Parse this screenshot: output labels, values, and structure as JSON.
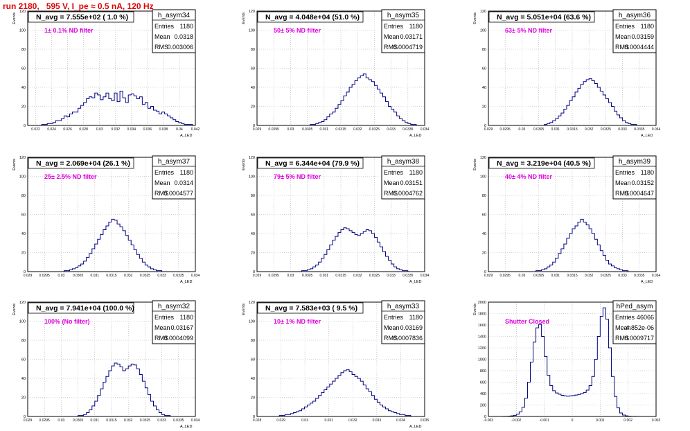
{
  "title": "run 2180,   595 V, I_pe ≈ 0.5 nA, 120 Hz",
  "colors": {
    "title": "#e00000",
    "annotation": "#e000e0",
    "histogram": "#000080",
    "grid": "#b0b0b0"
  },
  "chart_data": [
    {
      "type": "histogram",
      "name": "h_asym34",
      "headline": "N_avg = 7.555e+02 ( 1.0 %)",
      "annotation": "1± 0.1% ND filter",
      "stats": [
        [
          "Entries",
          "1180"
        ],
        [
          "Mean",
          "0.0318"
        ],
        [
          "RMS",
          "0.003006"
        ]
      ],
      "ylabel": "Events",
      "xlabel": "A_LED",
      "xlim": [
        0.021,
        0.042
      ],
      "ylim": [
        0,
        120
      ],
      "xticks": [
        0.022,
        0.024,
        0.026,
        0.028,
        0.03,
        0.032,
        0.034,
        0.036,
        0.038,
        0.04,
        0.042
      ],
      "xtick_labels": [
        "0.022",
        "0.024",
        "0.026",
        "0.028",
        "0.03",
        "0.032",
        "0.034",
        "0.036",
        "0.038",
        "0.04",
        "0.042"
      ],
      "yticks": [
        0,
        20,
        40,
        60,
        80,
        100,
        120
      ],
      "counts": [
        0,
        0,
        0,
        0,
        0,
        1,
        1,
        2,
        2,
        3,
        5,
        5,
        7,
        10,
        9,
        12,
        14,
        14,
        18,
        21,
        24,
        28,
        30,
        29,
        34,
        32,
        27,
        30,
        34,
        28,
        26,
        34,
        25,
        36,
        29,
        24,
        32,
        33,
        31,
        28,
        30,
        22,
        24,
        18,
        20,
        16,
        15,
        12,
        14,
        12,
        10,
        8,
        6,
        4,
        3,
        2,
        1,
        1,
        1,
        0
      ]
    },
    {
      "type": "histogram",
      "name": "h_asym35",
      "headline": "N_avg = 4.048e+04 (51.0 %)",
      "annotation": "50± 5% ND filter",
      "stats": [
        [
          "Entries",
          "1180"
        ],
        [
          "Mean",
          "0.03171"
        ],
        [
          "RMS",
          "0.0004719"
        ]
      ],
      "ylabel": "Events",
      "xlabel": "A_LED",
      "xlim": [
        0.029,
        0.034
      ],
      "ylim": [
        0,
        120
      ],
      "xticks": [
        0.029,
        0.0295,
        0.03,
        0.0305,
        0.031,
        0.0315,
        0.032,
        0.0325,
        0.033,
        0.0335,
        0.034
      ],
      "xtick_labels": [
        "0.029",
        "0.0295",
        "0.03",
        "0.0305",
        "0.031",
        "0.0315",
        "0.032",
        "0.0325",
        "0.033",
        "0.0335",
        "0.034"
      ],
      "yticks": [
        0,
        20,
        40,
        60,
        80,
        100,
        120
      ],
      "counts": [
        0,
        0,
        0,
        0,
        0,
        0,
        0,
        0,
        0,
        0,
        0,
        0,
        0,
        0,
        0,
        0,
        0,
        0,
        0,
        1,
        1,
        2,
        3,
        4,
        6,
        9,
        12,
        14,
        18,
        22,
        26,
        31,
        35,
        40,
        43,
        47,
        50,
        52,
        54,
        50,
        48,
        46,
        42,
        38,
        34,
        30,
        25,
        20,
        17,
        14,
        10,
        7,
        5,
        3,
        2,
        1,
        1,
        0,
        0,
        0
      ]
    },
    {
      "type": "histogram",
      "name": "h_asym36",
      "headline": "N_avg = 5.051e+04 (63.6 %)",
      "annotation": "63± 5% ND filter",
      "stats": [
        [
          "Entries",
          "1180"
        ],
        [
          "Mean",
          "0.03159"
        ],
        [
          "RMS",
          "0.0004444"
        ]
      ],
      "ylabel": "Events",
      "xlabel": "A_LED",
      "xlim": [
        0.029,
        0.034
      ],
      "ylim": [
        0,
        120
      ],
      "xticks": [
        0.029,
        0.0295,
        0.03,
        0.0305,
        0.031,
        0.0315,
        0.032,
        0.0325,
        0.033,
        0.0335,
        0.034
      ],
      "xtick_labels": [
        "0.029",
        "0.0295",
        "0.03",
        "0.0305",
        "0.031",
        "0.0315",
        "0.032",
        "0.0325",
        "0.033",
        "0.0335",
        "0.034"
      ],
      "yticks": [
        0,
        20,
        40,
        60,
        80,
        100,
        120
      ],
      "counts": [
        0,
        0,
        0,
        0,
        0,
        0,
        0,
        0,
        0,
        0,
        0,
        0,
        0,
        0,
        0,
        0,
        0,
        0,
        0,
        0,
        1,
        2,
        3,
        5,
        7,
        10,
        13,
        17,
        21,
        26,
        30,
        35,
        39,
        43,
        46,
        48,
        49,
        47,
        44,
        40,
        36,
        32,
        28,
        24,
        20,
        15,
        11,
        8,
        5,
        3,
        2,
        1,
        1,
        0,
        0,
        0,
        0,
        0,
        0,
        0
      ]
    },
    {
      "type": "histogram",
      "name": "h_asym37",
      "headline": "N_avg = 2.069e+04 (26.1 %)",
      "annotation": "25± 2.5% ND filter",
      "stats": [
        [
          "Entries",
          "1180"
        ],
        [
          "Mean",
          "0.0314"
        ],
        [
          "RMS",
          "0.0004577"
        ]
      ],
      "ylabel": "Events",
      "xlabel": "A_LED",
      "xlim": [
        0.029,
        0.034
      ],
      "ylim": [
        0,
        120
      ],
      "xticks": [
        0.029,
        0.0295,
        0.03,
        0.0305,
        0.031,
        0.0315,
        0.032,
        0.0325,
        0.033,
        0.0335,
        0.034
      ],
      "xtick_labels": [
        "0.029",
        "0.0295",
        "0.03",
        "0.0305",
        "0.031",
        "0.0315",
        "0.032",
        "0.0325",
        "0.033",
        "0.0335",
        "0.034"
      ],
      "yticks": [
        0,
        20,
        40,
        60,
        80,
        100,
        120
      ],
      "counts": [
        0,
        0,
        0,
        0,
        0,
        0,
        0,
        0,
        0,
        0,
        0,
        0,
        0,
        1,
        1,
        2,
        3,
        4,
        6,
        8,
        11,
        15,
        19,
        24,
        29,
        34,
        39,
        44,
        48,
        52,
        55,
        54,
        50,
        47,
        43,
        38,
        33,
        28,
        23,
        18,
        14,
        10,
        7,
        5,
        3,
        2,
        1,
        1,
        0,
        0,
        0,
        0,
        0,
        0,
        0,
        0,
        0,
        0,
        0,
        0
      ]
    },
    {
      "type": "histogram",
      "name": "h_asym38",
      "headline": "N_avg = 6.344e+04 (79.9 %)",
      "annotation": "79± 5% ND filter",
      "stats": [
        [
          "Entries",
          "1180"
        ],
        [
          "Mean",
          "0.03151"
        ],
        [
          "RMS",
          "0.0004762"
        ]
      ],
      "ylabel": "Events",
      "xlabel": "A_LED",
      "xlim": [
        0.029,
        0.034
      ],
      "ylim": [
        0,
        120
      ],
      "xticks": [
        0.029,
        0.0295,
        0.03,
        0.0305,
        0.031,
        0.0315,
        0.032,
        0.0325,
        0.033,
        0.0335,
        0.034
      ],
      "xtick_labels": [
        "0.029",
        "0.0295",
        "0.03",
        "0.0305",
        "0.031",
        "0.0315",
        "0.032",
        "0.0325",
        "0.033",
        "0.0335",
        "0.034"
      ],
      "yticks": [
        0,
        20,
        40,
        60,
        80,
        100,
        120
      ],
      "counts": [
        0,
        0,
        0,
        0,
        0,
        0,
        0,
        0,
        0,
        0,
        0,
        0,
        0,
        0,
        0,
        0,
        1,
        1,
        2,
        3,
        5,
        7,
        10,
        14,
        18,
        23,
        28,
        33,
        37,
        41,
        44,
        46,
        45,
        43,
        41,
        39,
        38,
        40,
        42,
        44,
        43,
        40,
        36,
        31,
        26,
        21,
        16,
        12,
        8,
        5,
        3,
        2,
        1,
        1,
        0,
        0,
        0,
        0,
        0,
        0
      ]
    },
    {
      "type": "histogram",
      "name": "h_asym39",
      "headline": "N_avg = 3.219e+04 (40.5 %)",
      "annotation": "40± 4% ND filter",
      "stats": [
        [
          "Entries",
          "1180"
        ],
        [
          "Mean",
          "0.03152"
        ],
        [
          "RMS",
          "0.0004647"
        ]
      ],
      "ylabel": "Events",
      "xlabel": "A_LED",
      "xlim": [
        0.029,
        0.034
      ],
      "ylim": [
        0,
        120
      ],
      "xticks": [
        0.029,
        0.0295,
        0.03,
        0.0305,
        0.031,
        0.0315,
        0.032,
        0.0325,
        0.033,
        0.0335,
        0.034
      ],
      "xtick_labels": [
        "0.029",
        "0.0295",
        "0.03",
        "0.0305",
        "0.031",
        "0.0315",
        "0.032",
        "0.0325",
        "0.033",
        "0.0335",
        "0.034"
      ],
      "yticks": [
        0,
        20,
        40,
        60,
        80,
        100,
        120
      ],
      "counts": [
        0,
        0,
        0,
        0,
        0,
        0,
        0,
        0,
        0,
        0,
        0,
        0,
        0,
        0,
        0,
        0,
        0,
        1,
        1,
        2,
        3,
        5,
        7,
        10,
        14,
        19,
        24,
        29,
        35,
        40,
        45,
        48,
        52,
        55,
        52,
        49,
        45,
        40,
        34,
        28,
        22,
        17,
        12,
        8,
        6,
        4,
        3,
        2,
        1,
        1,
        0,
        0,
        0,
        0,
        0,
        0,
        0,
        0,
        0,
        0
      ]
    },
    {
      "type": "histogram",
      "name": "h_asym32",
      "headline": "N_avg = 7.941e+04 (100.0 %)",
      "annotation": "100% (No filter)",
      "stats": [
        [
          "Entries",
          "1180"
        ],
        [
          "Mean",
          "0.03167"
        ],
        [
          "RMS",
          "0.0004099"
        ]
      ],
      "ylabel": "Events",
      "xlabel": "A_LED",
      "xlim": [
        0.029,
        0.034
      ],
      "ylim": [
        0,
        120
      ],
      "xticks": [
        0.029,
        0.0295,
        0.03,
        0.0305,
        0.031,
        0.0315,
        0.032,
        0.0325,
        0.033,
        0.0335,
        0.034
      ],
      "xtick_labels": [
        "0.029",
        "0.0295",
        "0.03",
        "0.0305",
        "0.031",
        "0.0315",
        "0.032",
        "0.0325",
        "0.033",
        "0.0335",
        "0.034"
      ],
      "yticks": [
        0,
        20,
        40,
        60,
        80,
        100,
        120
      ],
      "counts": [
        0,
        0,
        0,
        0,
        0,
        0,
        0,
        0,
        0,
        0,
        0,
        0,
        0,
        0,
        0,
        0,
        0,
        0,
        1,
        1,
        2,
        4,
        7,
        11,
        16,
        22,
        29,
        36,
        42,
        48,
        53,
        56,
        55,
        52,
        48,
        50,
        53,
        55,
        54,
        50,
        44,
        37,
        30,
        23,
        16,
        11,
        7,
        4,
        2,
        1,
        1,
        0,
        0,
        0,
        0,
        0,
        0,
        0,
        0,
        0
      ]
    },
    {
      "type": "histogram",
      "name": "h_asym33",
      "headline": "N_avg = 7.583e+03 ( 9.5 %)",
      "annotation": "10± 1% ND filter",
      "stats": [
        [
          "Entries",
          "1180"
        ],
        [
          "Mean",
          "0.03169"
        ],
        [
          "RMS",
          "0.0007836"
        ]
      ],
      "ylabel": "Events",
      "xlabel": "A_LED",
      "xlim": [
        0.028,
        0.035
      ],
      "ylim": [
        0,
        120
      ],
      "xticks": [
        0.028,
        0.029,
        0.03,
        0.031,
        0.032,
        0.033,
        0.034,
        0.035
      ],
      "xtick_labels": [
        "0.028",
        "0.029",
        "0.03",
        "0.031",
        "0.032",
        "0.033",
        "0.034",
        "0.035"
      ],
      "yticks": [
        0,
        20,
        40,
        60,
        80,
        100,
        120
      ],
      "counts": [
        0,
        0,
        0,
        0,
        0,
        0,
        0,
        0,
        1,
        1,
        2,
        2,
        3,
        4,
        5,
        6,
        8,
        10,
        12,
        14,
        16,
        19,
        22,
        25,
        28,
        31,
        34,
        37,
        40,
        43,
        46,
        48,
        49,
        47,
        44,
        42,
        40,
        37,
        33,
        29,
        26,
        22,
        18,
        15,
        12,
        10,
        8,
        6,
        5,
        4,
        3,
        2,
        2,
        1,
        1,
        0,
        0,
        0,
        0,
        0
      ]
    },
    {
      "type": "histogram",
      "name": "hPed_asym",
      "headline": "",
      "annotation": "Shutter Closed",
      "stats": [
        [
          "Entries",
          "46066"
        ],
        [
          "Mean",
          "-4.852e-06"
        ],
        [
          "RMS",
          "0.0009717"
        ]
      ],
      "ylabel": "Events",
      "xlabel": "",
      "xlim": [
        -0.003,
        0.003
      ],
      "ylim": [
        0,
        2000
      ],
      "xticks": [
        -0.003,
        -0.002,
        -0.001,
        0,
        0.001,
        0.002,
        0.003
      ],
      "xtick_labels": [
        "-0.003",
        "-0.002",
        "-0.001",
        "0",
        "0.001",
        "0.002",
        "0.003"
      ],
      "yticks": [
        0,
        200,
        400,
        600,
        800,
        1000,
        1200,
        1400,
        1600,
        1800,
        2000
      ],
      "counts": [
        0,
        0,
        0,
        0,
        0,
        1,
        2,
        5,
        10,
        20,
        40,
        80,
        160,
        320,
        600,
        950,
        1300,
        1550,
        1610,
        1400,
        1050,
        720,
        540,
        450,
        410,
        390,
        370,
        360,
        355,
        360,
        365,
        375,
        385,
        400,
        420,
        460,
        540,
        700,
        1000,
        1400,
        1750,
        1900,
        1700,
        1200,
        700,
        350,
        150,
        60,
        25,
        10,
        4,
        2,
        1,
        0,
        0,
        0,
        0,
        0,
        0,
        0
      ]
    }
  ]
}
